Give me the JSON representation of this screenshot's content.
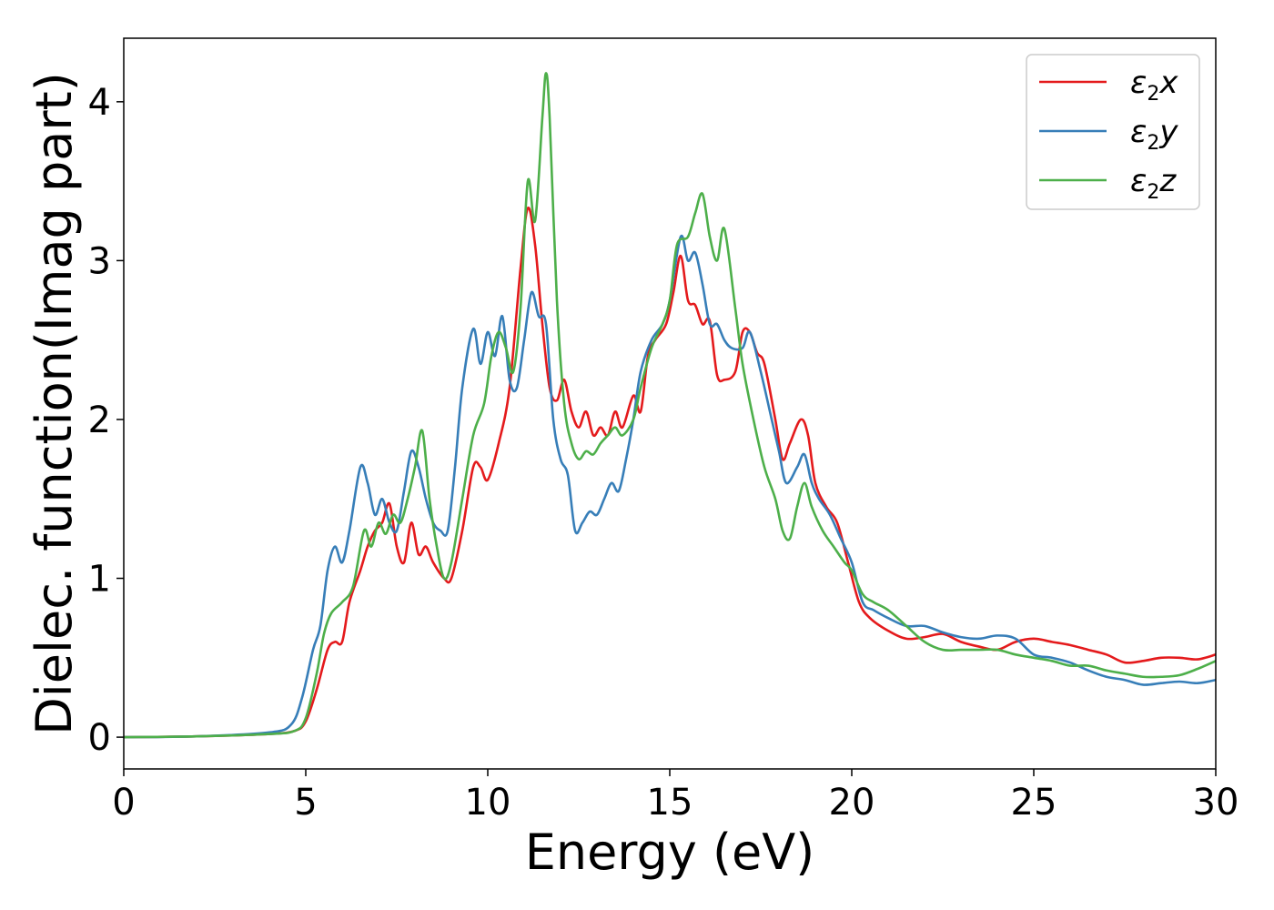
{
  "chart_data": {
    "type": "line",
    "title": "",
    "xlabel": "Energy (eV)",
    "ylabel": "Dielec. function(Imag part)",
    "xlim": [
      0,
      30
    ],
    "ylim": [
      -0.2,
      4.4
    ],
    "xticks": [
      "0",
      "5",
      "10",
      "15",
      "20",
      "25",
      "30"
    ],
    "yticks": [
      "0",
      "1",
      "2",
      "3",
      "4"
    ],
    "grid": false,
    "legend_position": "top-right",
    "series": [
      {
        "name": "ε2x",
        "legend_base": "ε",
        "legend_sub": "2",
        "legend_tail": "x",
        "color": "#e41a1c",
        "x": [
          0,
          2,
          4,
          4.7,
          5.0,
          5.3,
          5.6,
          5.8,
          6.0,
          6.2,
          6.5,
          6.7,
          6.9,
          7.1,
          7.3,
          7.5,
          7.7,
          7.9,
          8.1,
          8.3,
          8.5,
          8.8,
          9.0,
          9.3,
          9.6,
          9.8,
          10.0,
          10.3,
          10.6,
          10.9,
          11.1,
          11.3,
          11.5,
          11.7,
          11.9,
          12.1,
          12.3,
          12.5,
          12.7,
          12.9,
          13.1,
          13.3,
          13.5,
          13.7,
          14.0,
          14.2,
          14.4,
          14.6,
          14.9,
          15.1,
          15.3,
          15.5,
          15.7,
          15.9,
          16.1,
          16.3,
          16.5,
          16.8,
          17.0,
          17.2,
          17.4,
          17.6,
          17.9,
          18.1,
          18.3,
          18.6,
          18.8,
          19.0,
          19.3,
          19.6,
          19.9,
          20.2,
          20.5,
          21.0,
          21.5,
          22.0,
          22.5,
          23.0,
          23.5,
          24.0,
          24.5,
          25.0,
          25.5,
          26.0,
          26.5,
          27.0,
          27.5,
          28.0,
          28.5,
          29.0,
          29.5,
          30.0
        ],
        "y": [
          0,
          0.005,
          0.02,
          0.04,
          0.1,
          0.3,
          0.55,
          0.6,
          0.6,
          0.85,
          1.05,
          1.2,
          1.3,
          1.35,
          1.47,
          1.2,
          1.1,
          1.35,
          1.15,
          1.2,
          1.1,
          1.0,
          1.0,
          1.3,
          1.7,
          1.7,
          1.62,
          1.85,
          2.2,
          2.95,
          3.33,
          3.1,
          2.6,
          2.2,
          2.12,
          2.25,
          2.05,
          1.95,
          2.05,
          1.9,
          1.95,
          1.9,
          2.05,
          1.95,
          2.15,
          2.05,
          2.4,
          2.5,
          2.6,
          2.8,
          3.03,
          2.75,
          2.72,
          2.6,
          2.62,
          2.28,
          2.25,
          2.3,
          2.55,
          2.55,
          2.42,
          2.35,
          2.0,
          1.75,
          1.85,
          2.0,
          1.9,
          1.6,
          1.45,
          1.35,
          1.1,
          0.85,
          0.75,
          0.67,
          0.62,
          0.63,
          0.65,
          0.6,
          0.57,
          0.55,
          0.6,
          0.62,
          0.6,
          0.58,
          0.55,
          0.52,
          0.47,
          0.48,
          0.5,
          0.5,
          0.49,
          0.52
        ]
      },
      {
        "name": "ε2y",
        "legend_base": "ε",
        "legend_sub": "2",
        "legend_tail": "y",
        "color": "#377eb8",
        "x": [
          0,
          2,
          4,
          4.6,
          4.9,
          5.2,
          5.4,
          5.6,
          5.8,
          6.0,
          6.2,
          6.5,
          6.7,
          6.9,
          7.1,
          7.3,
          7.5,
          7.7,
          7.9,
          8.1,
          8.3,
          8.5,
          8.7,
          8.9,
          9.1,
          9.3,
          9.6,
          9.8,
          10.0,
          10.2,
          10.4,
          10.6,
          10.8,
          11.0,
          11.2,
          11.4,
          11.6,
          11.8,
          12.0,
          12.2,
          12.4,
          12.6,
          12.8,
          13.0,
          13.2,
          13.4,
          13.6,
          13.8,
          14.0,
          14.2,
          14.5,
          14.8,
          15.0,
          15.3,
          15.5,
          15.7,
          15.9,
          16.1,
          16.3,
          16.5,
          16.7,
          17.0,
          17.2,
          17.5,
          17.8,
          18.0,
          18.2,
          18.5,
          18.7,
          18.9,
          19.1,
          19.4,
          19.7,
          20.0,
          20.3,
          20.6,
          21.0,
          21.5,
          22.0,
          22.5,
          23.0,
          23.5,
          24.0,
          24.5,
          25.0,
          25.5,
          26.0,
          26.5,
          27.0,
          27.5,
          28.0,
          28.5,
          29.0,
          29.5,
          30.0
        ],
        "y": [
          0,
          0.005,
          0.03,
          0.08,
          0.25,
          0.55,
          0.7,
          1.05,
          1.2,
          1.1,
          1.3,
          1.7,
          1.6,
          1.4,
          1.5,
          1.35,
          1.3,
          1.55,
          1.8,
          1.7,
          1.5,
          1.35,
          1.3,
          1.3,
          1.7,
          2.2,
          2.57,
          2.35,
          2.55,
          2.4,
          2.65,
          2.25,
          2.2,
          2.5,
          2.8,
          2.65,
          2.6,
          2.0,
          1.75,
          1.65,
          1.3,
          1.35,
          1.42,
          1.4,
          1.5,
          1.6,
          1.55,
          1.75,
          2.0,
          2.3,
          2.5,
          2.6,
          2.75,
          3.15,
          3.0,
          3.05,
          2.85,
          2.6,
          2.6,
          2.5,
          2.45,
          2.45,
          2.55,
          2.3,
          2.0,
          1.8,
          1.6,
          1.7,
          1.78,
          1.6,
          1.5,
          1.4,
          1.25,
          1.1,
          0.85,
          0.8,
          0.75,
          0.7,
          0.7,
          0.66,
          0.63,
          0.62,
          0.64,
          0.62,
          0.52,
          0.5,
          0.47,
          0.42,
          0.38,
          0.36,
          0.33,
          0.34,
          0.35,
          0.34,
          0.36
        ]
      },
      {
        "name": "ε2z",
        "legend_base": "ε",
        "legend_sub": "2",
        "legend_tail": "z",
        "color": "#4daf4a",
        "x": [
          0,
          2,
          4,
          4.7,
          5.0,
          5.3,
          5.5,
          5.7,
          6.0,
          6.3,
          6.6,
          6.8,
          7.0,
          7.2,
          7.4,
          7.6,
          7.8,
          8.0,
          8.2,
          8.4,
          8.6,
          8.8,
          9.0,
          9.3,
          9.6,
          9.9,
          10.1,
          10.3,
          10.5,
          10.7,
          10.9,
          11.1,
          11.3,
          11.5,
          11.6,
          11.7,
          11.9,
          12.1,
          12.3,
          12.5,
          12.7,
          12.9,
          13.1,
          13.3,
          13.5,
          13.7,
          14.0,
          14.2,
          14.5,
          14.8,
          15.0,
          15.2,
          15.5,
          15.7,
          15.9,
          16.1,
          16.3,
          16.5,
          16.8,
          17.0,
          17.3,
          17.6,
          17.9,
          18.1,
          18.3,
          18.5,
          18.7,
          18.9,
          19.2,
          19.5,
          19.8,
          20.0,
          20.3,
          20.6,
          21.0,
          21.5,
          22.0,
          22.5,
          23.0,
          23.5,
          24.0,
          24.5,
          25.0,
          25.5,
          26.0,
          26.5,
          27.0,
          27.5,
          28.0,
          28.5,
          29.0,
          29.5,
          30.0
        ],
        "y": [
          0,
          0.005,
          0.02,
          0.04,
          0.12,
          0.4,
          0.65,
          0.78,
          0.85,
          0.95,
          1.3,
          1.2,
          1.35,
          1.28,
          1.4,
          1.35,
          1.5,
          1.7,
          1.93,
          1.5,
          1.2,
          1.0,
          1.1,
          1.5,
          1.9,
          2.1,
          2.4,
          2.55,
          2.45,
          2.3,
          2.7,
          3.5,
          3.25,
          3.9,
          4.18,
          3.9,
          2.75,
          2.1,
          1.85,
          1.75,
          1.8,
          1.78,
          1.85,
          1.9,
          1.95,
          1.9,
          2.0,
          2.2,
          2.45,
          2.6,
          2.75,
          3.1,
          3.15,
          3.3,
          3.42,
          3.15,
          3.0,
          3.2,
          2.7,
          2.35,
          2.0,
          1.7,
          1.5,
          1.3,
          1.25,
          1.45,
          1.6,
          1.45,
          1.3,
          1.2,
          1.1,
          1.05,
          0.9,
          0.85,
          0.8,
          0.7,
          0.6,
          0.55,
          0.55,
          0.55,
          0.55,
          0.52,
          0.5,
          0.48,
          0.45,
          0.45,
          0.42,
          0.4,
          0.38,
          0.38,
          0.39,
          0.43,
          0.48
        ]
      }
    ]
  }
}
